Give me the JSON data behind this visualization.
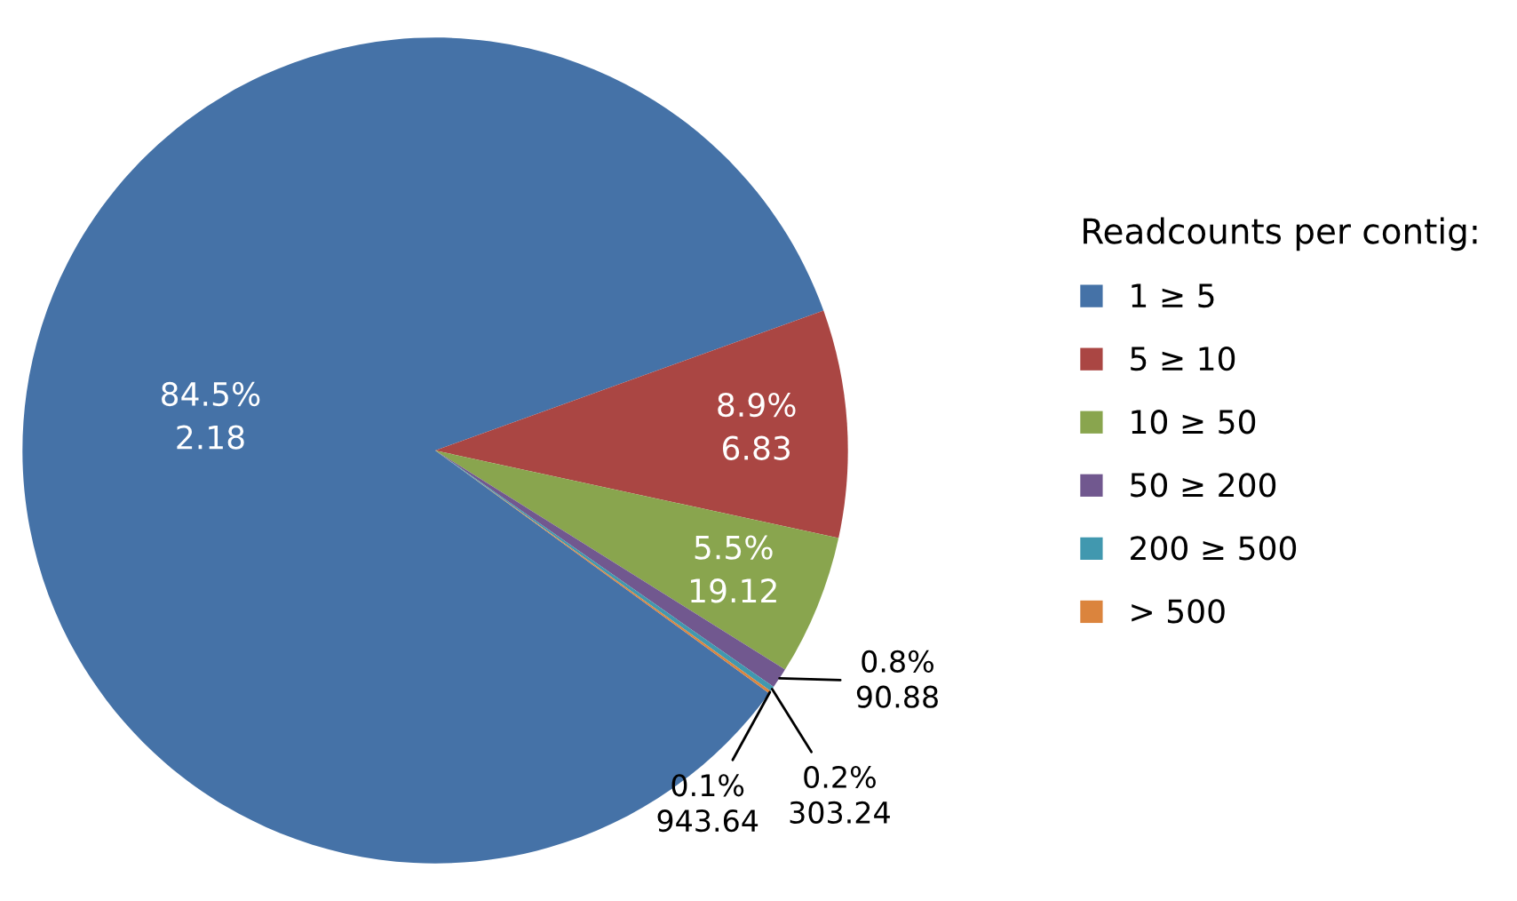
{
  "chart_data": {
    "type": "pie",
    "legend_title": "Readcounts per contig:",
    "legend": "right",
    "categories": [
      "1 ≥ 5",
      "5 ≥ 10",
      "10 ≥ 50",
      "50 ≥ 200",
      "200 ≥ 500",
      "> 500"
    ],
    "values": [
      84.5,
      8.9,
      5.5,
      0.8,
      0.2,
      0.1
    ],
    "colors": [
      "#4572a7",
      "#aa4643",
      "#89a54e",
      "#71588f",
      "#4198af",
      "#db843d"
    ],
    "value_labels": [
      "84.5%\n2.18",
      "8.9%\n6.83",
      "5.5%\n19.12",
      "0.8%\n90.88",
      "0.2%\n303.24",
      "0.1%\n943.64"
    ]
  }
}
